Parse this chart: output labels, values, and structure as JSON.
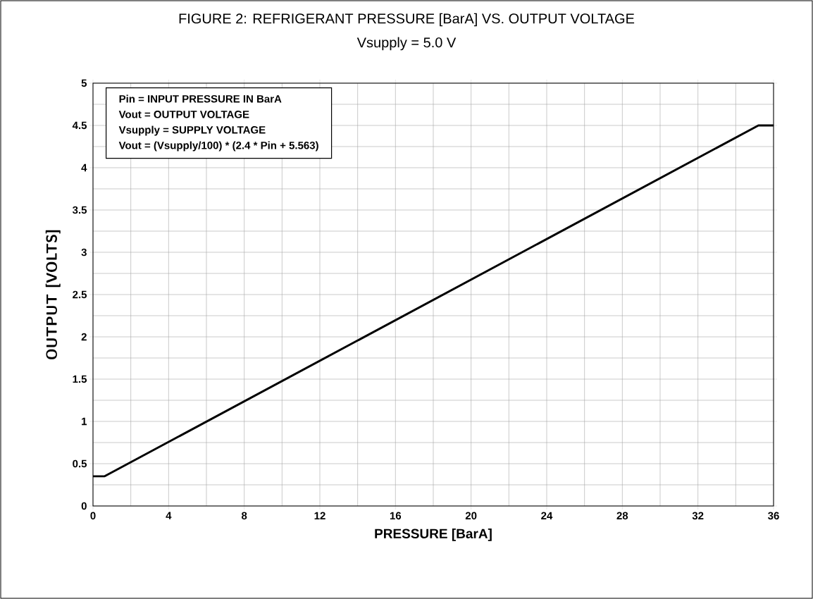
{
  "chart_data": {
    "type": "line",
    "title": "FIGURE 2: REFRIGERANT PRESSURE [BarA] VS. OUTPUT VOLTAGE",
    "subtitle": "Vsupply = 5.0 V",
    "xlabel": "PRESSURE [BarA]",
    "ylabel": "OUTPUT [VOLTS]",
    "annotations": [
      "Pin = INPUT PRESSURE IN BarA",
      "Vout = OUTPUT VOLTAGE",
      "Vsupply = SUPPLY VOLTAGE",
      "Vout = (Vsupply/100)  * (2.4 * Pin + 5.563)"
    ],
    "x": [
      0,
      0.6,
      35.2,
      36
    ],
    "series": [
      {
        "color": "#000000",
        "values": [
          0.35,
          0.35,
          4.5,
          4.5
        ]
      }
    ],
    "xlim": [
      0,
      36
    ],
    "ylim": [
      0,
      5
    ],
    "xticks": [
      0,
      4,
      8,
      12,
      16,
      20,
      24,
      28,
      32,
      36
    ],
    "yticks": [
      0,
      0.5,
      1,
      1.5,
      2,
      2.5,
      3,
      3.5,
      4,
      4.5,
      5
    ],
    "grid": true,
    "marker": "none",
    "line_style": "solid"
  }
}
